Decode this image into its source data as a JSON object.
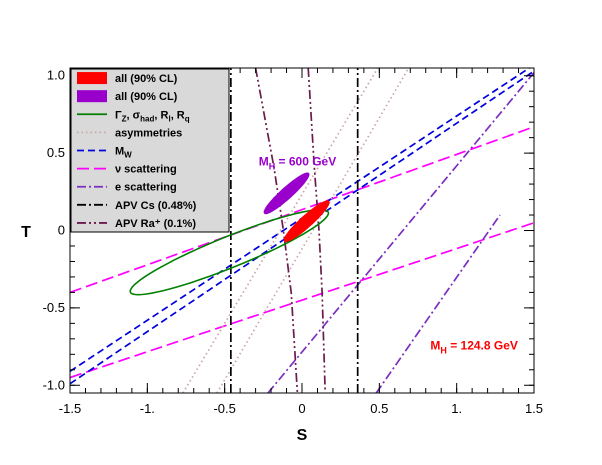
{
  "chart_data": {
    "type": "line",
    "title": "",
    "xlabel": "S",
    "ylabel": "T",
    "xlim": [
      -1.5,
      1.5
    ],
    "ylim": [
      -1.05,
      1.05
    ],
    "x_ticks": [
      -1.5,
      -1.0,
      -0.5,
      0,
      0.5,
      1.0,
      1.5
    ],
    "x_tick_labels": [
      "-1.5",
      "-1.",
      "-0.5",
      "0",
      "0.5",
      "1.",
      "1.5"
    ],
    "y_ticks": [
      -1.0,
      -0.5,
      0,
      0.5,
      1.0
    ],
    "y_tick_labels": [
      "-1.0",
      "-0.5",
      "0",
      "0.5",
      "1.0"
    ],
    "grid": false,
    "legend_position": "top-left",
    "colors": {
      "all_red": "#ff0000",
      "all_purple": "#9a00cc",
      "z_pole": "#008000",
      "asymmetries": "#c9a5a5",
      "mw": "#0000dd",
      "nu_scattering": "#ff00ff",
      "e_scattering": "#7b2fbf",
      "apv_cs": "#000000",
      "apv_ra": "#6a1b4d",
      "legend_bg": "#d9d9d9"
    },
    "legend": [
      {
        "key": "all_red",
        "style": "fill",
        "color": "#ff0000",
        "label": "all (90% CL)"
      },
      {
        "key": "all_purple",
        "style": "fill",
        "color": "#9a00cc",
        "label": "all (90% CL)"
      },
      {
        "key": "z_pole",
        "style": "solid",
        "color": "#008000",
        "label": "Γ_Z, σ_had, R_l, R_q"
      },
      {
        "key": "asymmetries",
        "style": "dotted",
        "color": "#c9a5a5",
        "label": "asymmetries"
      },
      {
        "key": "mw",
        "style": "dashed",
        "color": "#0000dd",
        "label": "M_W"
      },
      {
        "key": "nu_scattering",
        "style": "longdash",
        "color": "#ff00ff",
        "label": "ν scattering"
      },
      {
        "key": "e_scattering",
        "style": "dashdot",
        "color": "#7b2fbf",
        "label": "e scattering"
      },
      {
        "key": "apv_cs",
        "style": "dashdot",
        "color": "#000000",
        "label": "APV Cs (0.48%)"
      },
      {
        "key": "apv_ra",
        "style": "dashdotdot",
        "color": "#6a1b4d",
        "label": "APV Ra⁺ (0.1%)"
      }
    ],
    "series": [
      {
        "name": "all (90% CL) M_H=124.8 GeV",
        "kind": "ellipse",
        "fill": true,
        "color": "#ff0000",
        "center": [
          0.03,
          0.06
        ],
        "axes": [
          0.19,
          0.035
        ],
        "angle_deg": 42
      },
      {
        "name": "all (90% CL) M_H=600 GeV",
        "kind": "ellipse",
        "fill": true,
        "color": "#9a00cc",
        "center": [
          -0.1,
          0.24
        ],
        "axes": [
          0.19,
          0.034
        ],
        "angle_deg": 42
      },
      {
        "name": "Γ_Z, σ_had, R_l, R_q",
        "kind": "ellipse",
        "fill": false,
        "color": "#008000",
        "center": [
          -0.47,
          -0.14
        ],
        "axes": [
          0.69,
          0.1
        ],
        "angle_deg": 22
      },
      {
        "name": "asymmetries",
        "kind": "lines",
        "color": "#c9a5a5",
        "lines": [
          [
            [
              -0.77,
              -1.05
            ],
            [
              0.49,
              1.05
            ]
          ],
          [
            [
              -0.55,
              -1.05
            ],
            [
              0.69,
              1.05
            ]
          ]
        ]
      },
      {
        "name": "M_W",
        "kind": "lines",
        "color": "#0000dd",
        "lines": [
          [
            [
              -1.5,
              -0.99
            ],
            [
              1.5,
              1.03
            ]
          ],
          [
            [
              -1.5,
              -0.91
            ],
            [
              1.5,
              1.07
            ]
          ]
        ]
      },
      {
        "name": "ν scattering",
        "kind": "lines",
        "color": "#ff00ff",
        "lines": [
          [
            [
              -1.5,
              -0.4
            ],
            [
              1.5,
              0.67
            ]
          ],
          [
            [
              -1.5,
              -0.95
            ],
            [
              1.5,
              0.05
            ]
          ]
        ]
      },
      {
        "name": "e scattering",
        "kind": "lines",
        "color": "#7b2fbf",
        "lines": [
          [
            [
              -0.22,
              -1.05
            ],
            [
              1.5,
              1.02
            ]
          ],
          [
            [
              0.48,
              -1.05
            ],
            [
              1.28,
              0.1
            ]
          ]
        ]
      },
      {
        "name": "APV Cs (0.48%)",
        "kind": "lines",
        "color": "#000000",
        "lines": [
          [
            [
              -0.46,
              -1.05
            ],
            [
              -0.46,
              1.05
            ]
          ],
          [
            [
              0.36,
              -1.05
            ],
            [
              0.36,
              1.05
            ]
          ]
        ]
      },
      {
        "name": "APV Ra⁺ (0.1%)",
        "kind": "curves",
        "color": "#6a1b4d",
        "curves": [
          [
            [
              -0.3,
              1.05
            ],
            [
              -0.18,
              0.4
            ],
            [
              -0.12,
              0.0
            ],
            [
              -0.07,
              -0.4
            ],
            [
              -0.03,
              -1.05
            ]
          ],
          [
            [
              0.04,
              1.05
            ],
            [
              0.08,
              0.4
            ],
            [
              0.11,
              0.0
            ],
            [
              0.13,
              -0.4
            ],
            [
              0.15,
              -1.05
            ]
          ]
        ]
      }
    ],
    "annotations": [
      {
        "text": "M_H = 600 GeV",
        "main": "M",
        "sub": "H",
        "rest": " = 600 GeV",
        "at": [
          -0.28,
          0.42
        ],
        "color": "#9a00cc"
      },
      {
        "text": "M_H = 124.8 GeV",
        "main": "M",
        "sub": "H",
        "rest": " = 124.8 GeV",
        "at": [
          0.83,
          -0.77
        ],
        "color": "#ff0000"
      }
    ]
  }
}
